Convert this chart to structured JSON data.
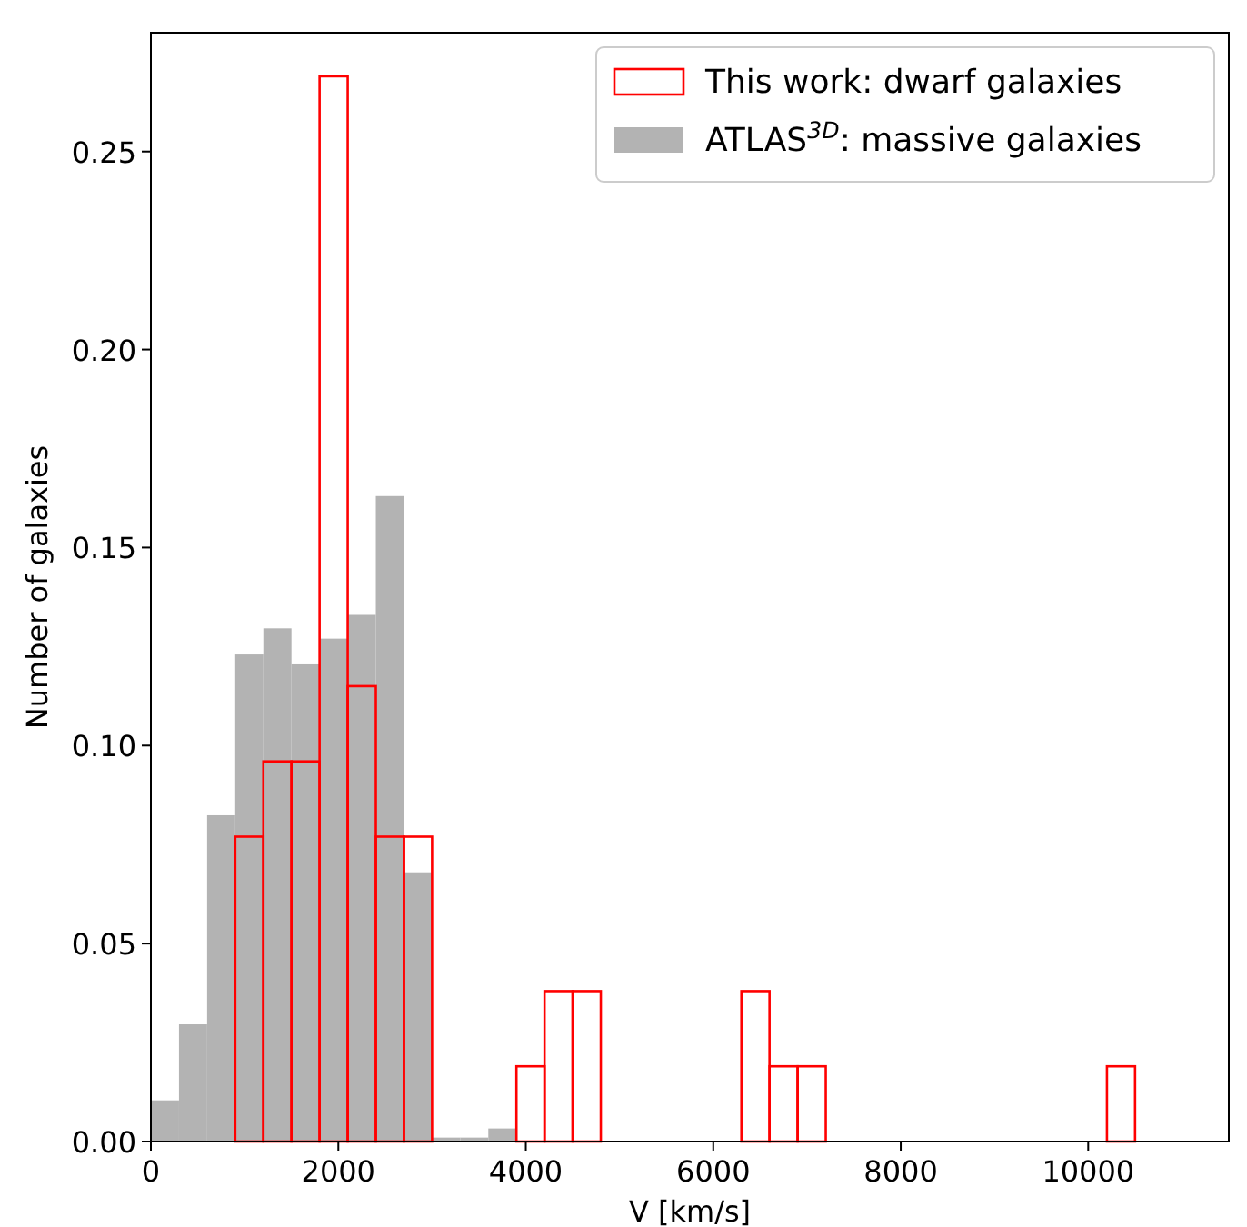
{
  "chart_data": {
    "type": "histogram",
    "xlabel": "V [km/s]",
    "ylabel": "Number of galaxies",
    "xlim": [
      0,
      11500
    ],
    "xticks": [
      0,
      2000,
      4000,
      6000,
      8000,
      10000
    ],
    "ylim": [
      0,
      0.28
    ],
    "yticks": [
      {
        "value": 0,
        "label": "0.00"
      },
      {
        "value": 0.05,
        "label": "0.05"
      },
      {
        "value": 0.1,
        "label": "0.10"
      },
      {
        "value": 0.15,
        "label": "0.15"
      },
      {
        "value": 0.2,
        "label": "0.20"
      },
      {
        "value": 0.25,
        "label": "0.25"
      }
    ],
    "legend": "top right",
    "bins": [
      0,
      300,
      600,
      900,
      1200,
      1500,
      1800,
      2100,
      2400,
      2700,
      3000,
      3300,
      3600,
      3900,
      4200,
      4500,
      4800,
      5100,
      5400,
      5700,
      6000,
      6300,
      6600,
      6900,
      7200,
      7500,
      7800,
      8100,
      8400,
      8700,
      9000,
      9300,
      9600,
      9900,
      10200,
      10500,
      10800
    ],
    "series": [
      {
        "name": "ATLAS$^{3D}$: massive galaxies",
        "color": "#b3b3b3",
        "values": [
          0.0104,
          0.0296,
          0.0824,
          0.123,
          0.1296,
          0.1205,
          0.127,
          0.133,
          0.163,
          0.068,
          0.001,
          0.001,
          0.0033,
          null,
          null,
          null,
          null,
          null,
          null,
          null,
          null,
          null,
          null,
          null,
          null,
          null,
          null,
          null,
          null,
          null,
          null,
          null,
          null,
          null,
          null,
          null
        ]
      },
      {
        "name": "This work: dwarf galaxies",
        "color": "#ff0000",
        "values": [
          null,
          null,
          null,
          0.077,
          0.096,
          0.096,
          0.269,
          0.115,
          0.077,
          0.077,
          0,
          0,
          0,
          0.019,
          0.038,
          0.038,
          0,
          0,
          0,
          0,
          0,
          0.038,
          0.019,
          0.019,
          0,
          0,
          0,
          0,
          0,
          0,
          0,
          0,
          0,
          0,
          0.019,
          0
        ]
      }
    ]
  }
}
